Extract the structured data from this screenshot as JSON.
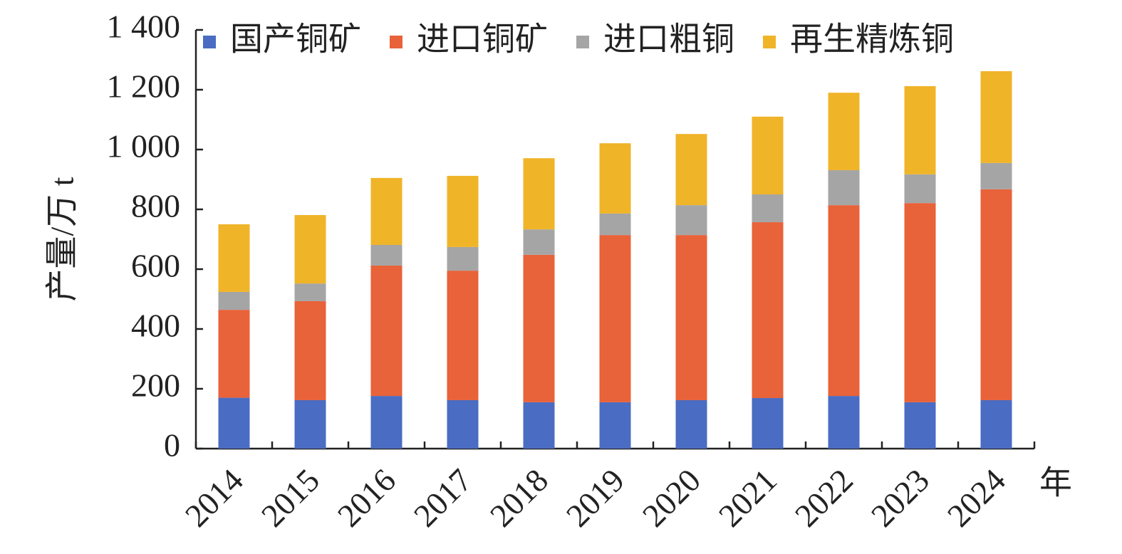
{
  "chart_data": {
    "type": "stacked-bar",
    "y_label": "产量/万 t",
    "x_label": "年",
    "categories": [
      "2014",
      "2015",
      "2016",
      "2017",
      "2018",
      "2019",
      "2020",
      "2021",
      "2022",
      "2023",
      "2024"
    ],
    "series": [
      {
        "name": "国产铜矿",
        "color": "#4a6cc2",
        "values": [
          170,
          162,
          176,
          162,
          155,
          155,
          162,
          169,
          176,
          155,
          162
        ]
      },
      {
        "name": "进口铜矿",
        "color": "#e8623a",
        "values": [
          294,
          331,
          436,
          433,
          493,
          559,
          552,
          588,
          638,
          666,
          705
        ]
      },
      {
        "name": "进口粗铜",
        "color": "#a5a5a5",
        "values": [
          60,
          59,
          69,
          79,
          85,
          72,
          100,
          93,
          117,
          96,
          88
        ]
      },
      {
        "name": "再生精炼铜",
        "color": "#f0b429",
        "values": [
          226,
          229,
          224,
          238,
          238,
          235,
          238,
          260,
          259,
          295,
          307
        ]
      }
    ],
    "ylim": [
      0,
      1400
    ],
    "yticks": [
      0,
      200,
      400,
      600,
      800,
      {
        "value": 1000,
        "label": "1 000"
      },
      {
        "value": 1200,
        "label": "1 200"
      },
      {
        "value": 1400,
        "label": "1 400"
      }
    ],
    "legend": "top"
  }
}
